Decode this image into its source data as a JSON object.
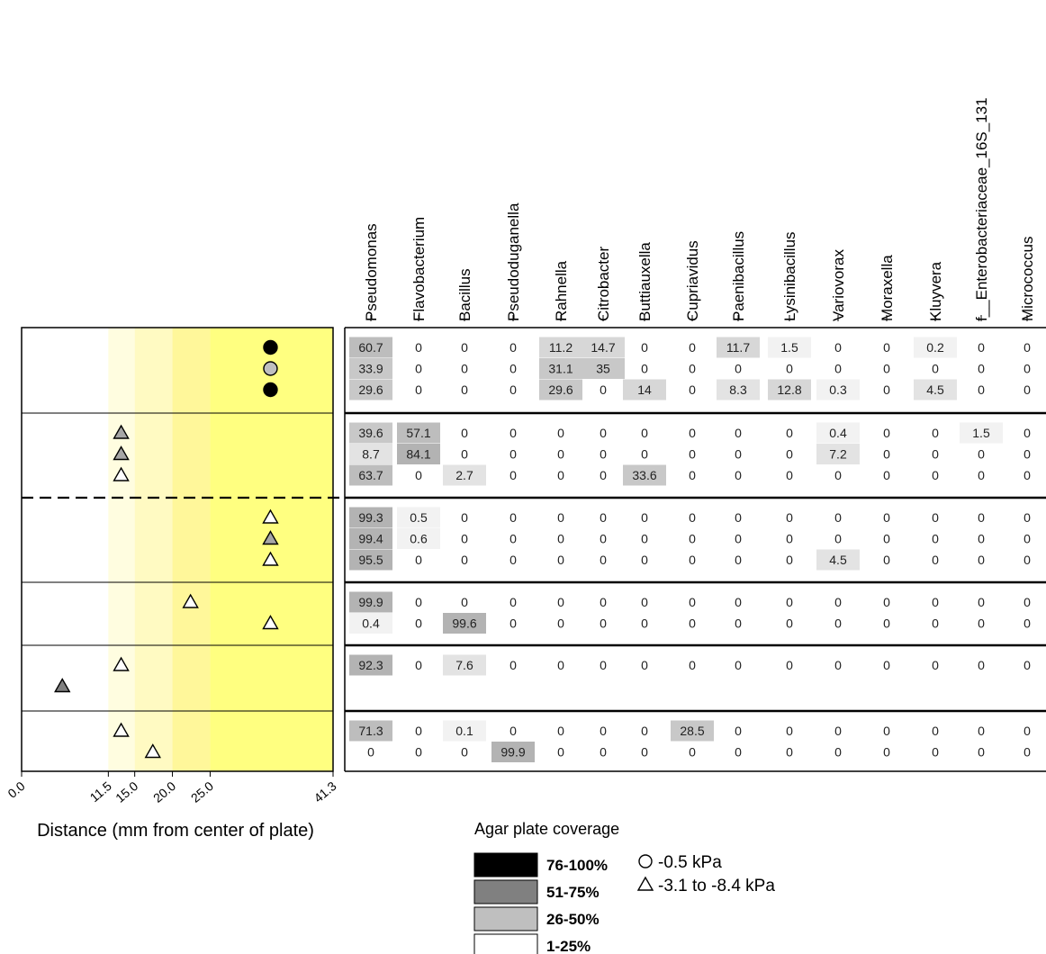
{
  "chart_data": [
    {
      "type": "scatter",
      "xlabel": "Distance (mm from center of plate)",
      "xlim": [
        0,
        41.3
      ],
      "x_ticks": [
        "0.0",
        "11.5",
        "15.0",
        "20.0",
        "25.0",
        "41.3"
      ],
      "background_bands": [
        {
          "from": 0,
          "to": 11.5,
          "color": "#ffffff"
        },
        {
          "from": 11.5,
          "to": 15.0,
          "color": "#fffde0"
        },
        {
          "from": 15.0,
          "to": 20.0,
          "color": "#fffac2"
        },
        {
          "from": 20.0,
          "to": 25.0,
          "color": "#fff79a"
        },
        {
          "from": 25.0,
          "to": 41.3,
          "color": "#ffff80"
        }
      ],
      "groups": [
        {
          "rows": [
            {
              "x": 33,
              "shape": "circle",
              "fill": "#000000"
            },
            {
              "x": 33,
              "shape": "circle",
              "fill": "#bfbfbf"
            },
            {
              "x": 33,
              "shape": "circle",
              "fill": "#000000"
            }
          ]
        },
        {
          "rows": [
            {
              "x": 13.2,
              "shape": "triangle",
              "fill": "#a6a6a6"
            },
            {
              "x": 13.2,
              "shape": "triangle",
              "fill": "#a6a6a6"
            },
            {
              "x": 13.2,
              "shape": "triangle",
              "fill": "#ffffff"
            }
          ]
        },
        {
          "rows": [
            {
              "x": 33,
              "shape": "triangle",
              "fill": "#ffffff"
            },
            {
              "x": 33,
              "shape": "triangle",
              "fill": "#a6a6a6"
            },
            {
              "x": 33,
              "shape": "triangle",
              "fill": "#ffffff"
            }
          ]
        },
        {
          "rows": [
            {
              "x": 22.4,
              "shape": "triangle",
              "fill": "#ffffff"
            },
            {
              "x": 33,
              "shape": "triangle",
              "fill": "#ffffff"
            }
          ]
        },
        {
          "rows": [
            {
              "x": 13.2,
              "shape": "triangle",
              "fill": "#ffffff"
            },
            {
              "x": 5.4,
              "shape": "triangle",
              "fill": "#808080"
            }
          ]
        },
        {
          "rows": [
            {
              "x": 13.2,
              "shape": "triangle",
              "fill": "#ffffff"
            },
            {
              "x": 17.4,
              "shape": "triangle",
              "fill": "#ffffff"
            }
          ]
        }
      ],
      "dashed_separator_after_group": 1
    },
    {
      "type": "heatmap",
      "columns": [
        "Pseudomonas",
        "Flavobacterium",
        "Bacillus",
        "Pseudoduganella",
        "Rahnella",
        "Citrobacter",
        "Buttiauxella",
        "Cupriavidus",
        "Paenibacillus",
        "Lysinibacillus",
        "Variovorax",
        "Moraxella",
        "Kluyvera",
        "f__Enterobacteriaceae_16S_131",
        "Micrococcus"
      ],
      "groups": [
        [
          [
            "60.7",
            "0",
            "0",
            "0",
            "11.2",
            "14.7",
            "0",
            "0",
            "11.7",
            "1.5",
            "0",
            "0",
            "0.2",
            "0",
            "0"
          ],
          [
            "33.9",
            "0",
            "0",
            "0",
            "31.1",
            "35",
            "0",
            "0",
            "0",
            "0",
            "0",
            "0",
            "0",
            "0",
            "0"
          ],
          [
            "29.6",
            "0",
            "0",
            "0",
            "29.6",
            "0",
            "14",
            "0",
            "8.3",
            "12.8",
            "0.3",
            "0",
            "4.5",
            "0",
            "0"
          ]
        ],
        [
          [
            "39.6",
            "57.1",
            "0",
            "0",
            "0",
            "0",
            "0",
            "0",
            "0",
            "0",
            "0.4",
            "0",
            "0",
            "1.5",
            "0"
          ],
          [
            "8.7",
            "84.1",
            "0",
            "0",
            "0",
            "0",
            "0",
            "0",
            "0",
            "0",
            "7.2",
            "0",
            "0",
            "0",
            "0"
          ],
          [
            "63.7",
            "0",
            "2.7",
            "0",
            "0",
            "0",
            "33.6",
            "0",
            "0",
            "0",
            "0",
            "0",
            "0",
            "0",
            "0"
          ]
        ],
        [
          [
            "99.3",
            "0.5",
            "0",
            "0",
            "0",
            "0",
            "0",
            "0",
            "0",
            "0",
            "0",
            "0",
            "0",
            "0",
            "0"
          ],
          [
            "99.4",
            "0.6",
            "0",
            "0",
            "0",
            "0",
            "0",
            "0",
            "0",
            "0",
            "0",
            "0",
            "0",
            "0",
            "0"
          ],
          [
            "95.5",
            "0",
            "0",
            "0",
            "0",
            "0",
            "0",
            "0",
            "0",
            "0",
            "4.5",
            "0",
            "0",
            "0",
            "0"
          ]
        ],
        [
          [
            "99.9",
            "0",
            "0",
            "0",
            "0",
            "0",
            "0",
            "0",
            "0",
            "0",
            "0",
            "0",
            "0",
            "0",
            "0"
          ],
          [
            "0.4",
            "0",
            "99.6",
            "0",
            "0",
            "0",
            "0",
            "0",
            "0",
            "0",
            "0",
            "0",
            "0",
            "0",
            "0"
          ]
        ],
        [
          [
            "92.3",
            "0",
            "7.6",
            "0",
            "0",
            "0",
            "0",
            "0",
            "0",
            "0",
            "0",
            "0",
            "0",
            "0",
            "0"
          ],
          null
        ],
        [
          [
            "71.3",
            "0",
            "0.1",
            "0",
            "0",
            "0",
            "0",
            "28.5",
            "0",
            "0",
            "0",
            "0",
            "0",
            "0",
            "0"
          ],
          [
            "0",
            "0",
            "0",
            "99.9",
            "0",
            "0",
            "0",
            "0",
            "0",
            "0",
            "0",
            "0",
            "0",
            "0",
            "0"
          ]
        ]
      ]
    }
  ],
  "legend": {
    "title": "Agar plate coverage",
    "coverage": [
      {
        "label": "76-100%",
        "color": "#000000"
      },
      {
        "label": "51-75%",
        "color": "#808080"
      },
      {
        "label": "26-50%",
        "color": "#bfbfbf"
      },
      {
        "label": "1-25%",
        "color": "#ffffff"
      }
    ],
    "markers": [
      {
        "shape": "circle",
        "label": "-0.5 kPa"
      },
      {
        "shape": "triangle",
        "label": "-3.1 to -8.4 kPa"
      }
    ]
  }
}
